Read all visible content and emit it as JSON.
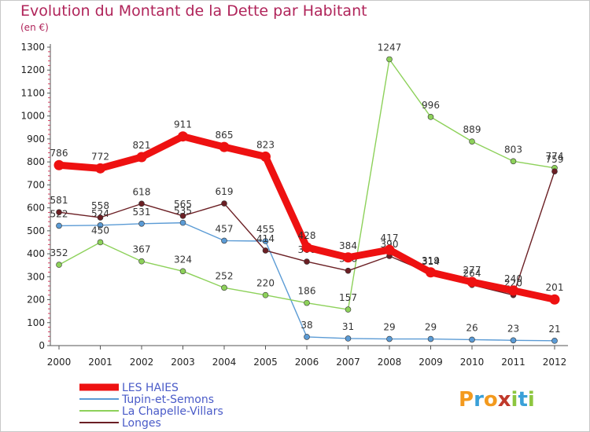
{
  "title": "Evolution du Montant de la Dette par Habitant",
  "unit": "(en €)",
  "logo": {
    "text": "Proxiti",
    "colors": [
      "#f39a1e",
      "#3aa0d8",
      "#f39a1e",
      "#c0392b",
      "#8dc63f",
      "#3aa0d8",
      "#8dc63f"
    ]
  },
  "chart_data": {
    "type": "line",
    "x": [
      "2000",
      "2001",
      "2002",
      "2003",
      "2004",
      "2005",
      "2006",
      "2007",
      "2008",
      "2009",
      "2010",
      "2011",
      "2012"
    ],
    "ylim": [
      0,
      1300
    ],
    "yticks": [
      0,
      100,
      200,
      300,
      400,
      500,
      600,
      700,
      800,
      900,
      1000,
      1100,
      1200,
      1300
    ],
    "grid": false,
    "legend_position": "bottom-left",
    "series": [
      {
        "name": "Tupin-et-Semons",
        "color": "#5b9bd5",
        "values": [
          522,
          524,
          531,
          535,
          457,
          455,
          38,
          31,
          29,
          29,
          26,
          23,
          21
        ]
      },
      {
        "name": "La Chapelle-Villars",
        "color": "#8dd15a",
        "values": [
          352,
          450,
          367,
          324,
          252,
          220,
          186,
          157,
          1247,
          996,
          889,
          803,
          774
        ]
      },
      {
        "name": "Longes",
        "color": "#6b1f24",
        "values": [
          581,
          558,
          618,
          565,
          619,
          414,
          366,
          326,
          390,
          314,
          264,
          220,
          759
        ]
      },
      {
        "name": "LES HAIES",
        "color": "#ee1111",
        "values": [
          786,
          772,
          821,
          911,
          865,
          823,
          428,
          384,
          417,
          319,
          277,
          240,
          201
        ]
      }
    ]
  }
}
